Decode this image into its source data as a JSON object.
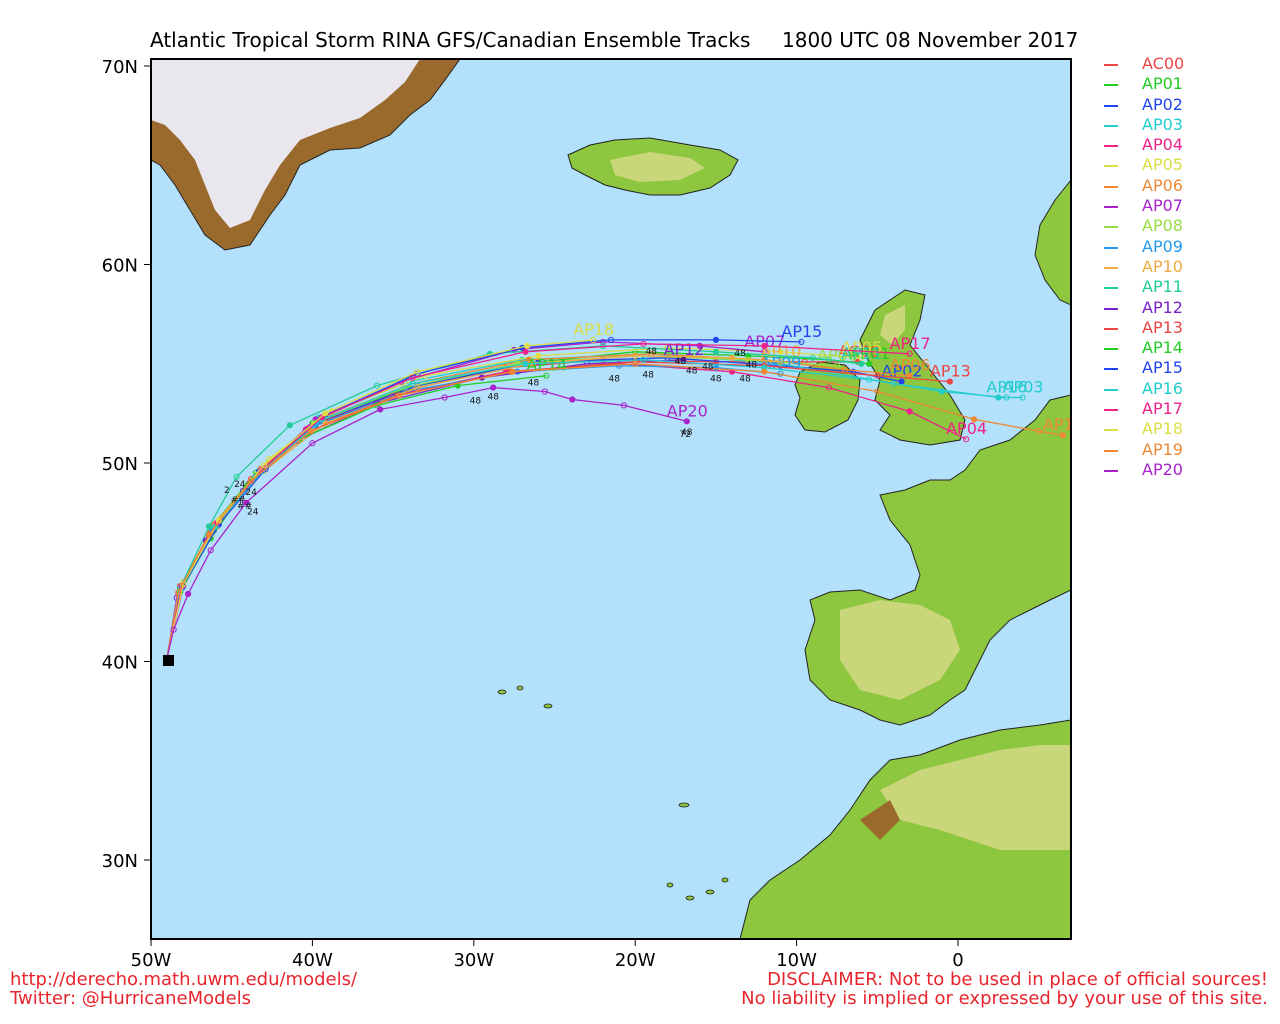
{
  "title_left": "Atlantic Tropical Storm RINA GFS/Canadian Ensemble Tracks",
  "title_right": "1800 UTC 08 November 2017",
  "colors": {
    "ocean": "#b3e1fb",
    "land_low": "#8dc63f",
    "land_mid": "#c9d67a",
    "land_high": "#9a6a2c",
    "ice": "#eae6ee"
  },
  "axes": {
    "lon_ticks": [
      "50W",
      "40W",
      "30W",
      "20W",
      "10W",
      "0"
    ],
    "lat_ticks": [
      "70N",
      "60N",
      "50N",
      "40N",
      "30N"
    ]
  },
  "legend": [
    {
      "name": "AC00",
      "color": "#ee4444"
    },
    {
      "name": "AP01",
      "color": "#22cc22"
    },
    {
      "name": "AP02",
      "color": "#2244ee"
    },
    {
      "name": "AP03",
      "color": "#22cccc"
    },
    {
      "name": "AP04",
      "color": "#ee2288"
    },
    {
      "name": "AP05",
      "color": "#dddd44"
    },
    {
      "name": "AP06",
      "color": "#ee8833"
    },
    {
      "name": "AP07",
      "color": "#aa22cc"
    },
    {
      "name": "AP08",
      "color": "#99dd44"
    },
    {
      "name": "AP09",
      "color": "#2299ee"
    },
    {
      "name": "AP10",
      "color": "#eeaa44"
    },
    {
      "name": "AP11",
      "color": "#22cc99"
    },
    {
      "name": "AP12",
      "color": "#7722cc"
    },
    {
      "name": "AP13",
      "color": "#ee4444"
    },
    {
      "name": "AP14",
      "color": "#22cc22"
    },
    {
      "name": "AP15",
      "color": "#2244ee"
    },
    {
      "name": "AP16",
      "color": "#22cccc"
    },
    {
      "name": "AP17",
      "color": "#ee2288"
    },
    {
      "name": "AP18",
      "color": "#dddd44"
    },
    {
      "name": "AP19",
      "color": "#ee8833"
    },
    {
      "name": "AP20",
      "color": "#aa22cc"
    }
  ],
  "footer": {
    "url": "http://derecho.math.uwm.edu/models/",
    "twitter": "Twitter: @HurricaneModels",
    "disclaimer1": "DISCLAIMER: Not to be used in place of official sources!",
    "disclaimer2": "No liability is implied or expressed by your use of this site."
  },
  "tracks": [
    {
      "name": "AC00",
      "color": "#ee4444",
      "label": "AC00",
      "pts": [
        [
          -49,
          40.2
        ],
        [
          -48.2,
          43.8
        ],
        [
          -46.3,
          46.5
        ],
        [
          -43.8,
          49.2
        ],
        [
          -40.2,
          51.8
        ],
        [
          -35,
          53.5
        ],
        [
          -28,
          54.8
        ],
        [
          -22,
          55.2
        ],
        [
          -15,
          55.1
        ],
        [
          -9.5,
          55.1
        ],
        [
          -6.2,
          55.1
        ]
      ]
    },
    {
      "name": "AP01",
      "color": "#22cc22",
      "label": "AP01",
      "pts": [
        [
          -49,
          40.2
        ],
        [
          -48.2,
          43.5
        ],
        [
          -46.2,
          46.8
        ],
        [
          -43.5,
          49.5
        ],
        [
          -40,
          52
        ],
        [
          -34,
          53.8
        ],
        [
          -27,
          55
        ],
        [
          -20,
          55.6
        ],
        [
          -13,
          55.4
        ],
        [
          -8,
          55.2
        ],
        [
          -5.5,
          55
        ]
      ]
    },
    {
      "name": "AP02",
      "color": "#2244ee",
      "label": "AP02",
      "pts": [
        [
          -49,
          40.2
        ],
        [
          -48.2,
          43.6
        ],
        [
          -46.1,
          46.6
        ],
        [
          -43.3,
          49.6
        ],
        [
          -39.5,
          52.1
        ],
        [
          -33.5,
          53.9
        ],
        [
          -26,
          55.1
        ],
        [
          -18,
          55.3
        ],
        [
          -11,
          54.9
        ],
        [
          -6.5,
          54.6
        ],
        [
          -3.5,
          54.1
        ]
      ]
    },
    {
      "name": "AP03",
      "color": "#22cccc",
      "label": "AP03",
      "pts": [
        [
          -49,
          40.2
        ],
        [
          -48.1,
          43.7
        ],
        [
          -46,
          46.9
        ],
        [
          -43.2,
          49.7
        ],
        [
          -39.6,
          52.3
        ],
        [
          -34,
          54.1
        ],
        [
          -27,
          55.2
        ],
        [
          -19,
          55.5
        ],
        [
          -11,
          55
        ],
        [
          -4,
          54
        ],
        [
          2.5,
          53.3
        ],
        [
          4,
          53.3
        ]
      ]
    },
    {
      "name": "AP04",
      "color": "#ee2288",
      "label": "AP04",
      "pts": [
        [
          -49,
          40.2
        ],
        [
          -48.3,
          43.4
        ],
        [
          -46.4,
          46.4
        ],
        [
          -43.9,
          49
        ],
        [
          -40.4,
          51.7
        ],
        [
          -35,
          53.4
        ],
        [
          -28,
          54.6
        ],
        [
          -21,
          55
        ],
        [
          -14,
          54.6
        ],
        [
          -8,
          53.8
        ],
        [
          -3,
          52.6
        ],
        [
          0.5,
          51.2
        ]
      ]
    },
    {
      "name": "AP05",
      "color": "#dddd44",
      "label": "AP05",
      "pts": [
        [
          -49,
          40.2
        ],
        [
          -48,
          44
        ],
        [
          -45.7,
          47.2
        ],
        [
          -42.7,
          50.2
        ],
        [
          -38.8,
          52.6
        ],
        [
          -33,
          54.4
        ],
        [
          -26,
          55.4
        ],
        [
          -18,
          55.8
        ],
        [
          -11,
          55.6
        ],
        [
          -6,
          55.3
        ]
      ]
    },
    {
      "name": "AP06",
      "color": "#ee8833",
      "label": "AP06",
      "pts": [
        [
          -49,
          40.2
        ],
        [
          -48.2,
          43.7
        ],
        [
          -46.1,
          46.9
        ],
        [
          -43.2,
          49.7
        ],
        [
          -39.5,
          52.2
        ],
        [
          -33.8,
          54
        ],
        [
          -26.6,
          55.2
        ],
        [
          -19,
          55.5
        ],
        [
          -12,
          55.2
        ],
        [
          -7,
          54.7
        ],
        [
          -3,
          54.4
        ]
      ]
    },
    {
      "name": "AP07",
      "color": "#aa22cc",
      "label": "AP07",
      "pts": [
        [
          -49,
          40.2
        ],
        [
          -48,
          43.8
        ],
        [
          -45.9,
          47
        ],
        [
          -43.2,
          49.6
        ],
        [
          -39.8,
          52.2
        ],
        [
          -34.5,
          54.1
        ],
        [
          -27.5,
          55.7
        ],
        [
          -22,
          56.1
        ],
        [
          -16,
          55.9
        ],
        [
          -12,
          55.6
        ]
      ]
    },
    {
      "name": "AP08",
      "color": "#99dd44",
      "label": "AP08",
      "pts": [
        [
          -49,
          40.2
        ],
        [
          -48.2,
          43.6
        ],
        [
          -46.2,
          46.7
        ],
        [
          -43.5,
          49.4
        ],
        [
          -39.9,
          52
        ],
        [
          -34.3,
          53.8
        ],
        [
          -27.3,
          55
        ],
        [
          -20,
          55.4
        ],
        [
          -13,
          55.2
        ],
        [
          -7.5,
          54.9
        ]
      ]
    },
    {
      "name": "AP09",
      "color": "#2299ee",
      "label": "AP09",
      "pts": [
        [
          -49,
          40.2
        ],
        [
          -48.2,
          43.6
        ],
        [
          -46.2,
          46.6
        ],
        [
          -43.5,
          49.3
        ],
        [
          -39.8,
          51.9
        ],
        [
          -34.2,
          53.6
        ],
        [
          -27.3,
          54.6
        ],
        [
          -21,
          54.9
        ],
        [
          -15,
          54.8
        ],
        [
          -11,
          54.5
        ]
      ]
    },
    {
      "name": "AP10",
      "color": "#eeaa44",
      "label": "AP10",
      "pts": [
        [
          -49,
          40.2
        ],
        [
          -48.1,
          43.8
        ],
        [
          -45.9,
          46.8
        ],
        [
          -43,
          49.6
        ],
        [
          -39.2,
          52
        ],
        [
          -33.5,
          53.8
        ],
        [
          -26.5,
          55
        ],
        [
          -20,
          55.4
        ],
        [
          -14,
          55.3
        ],
        [
          -11,
          55.1
        ]
      ]
    },
    {
      "name": "AP11",
      "color": "#22cc99",
      "label": "AP11",
      "pts": [
        [
          -49,
          40.2
        ],
        [
          -48.2,
          43.7
        ],
        [
          -46.4,
          46.8
        ],
        [
          -44.7,
          49.3
        ],
        [
          -41.4,
          51.9
        ],
        [
          -36,
          53.9
        ],
        [
          -29,
          55.5
        ],
        [
          -22,
          55.9
        ],
        [
          -15,
          55.6
        ],
        [
          -9,
          55.3
        ],
        [
          -6,
          55
        ]
      ]
    },
    {
      "name": "AP12",
      "color": "#7722cc",
      "label": "AP12",
      "pts": [
        [
          -49,
          40.2
        ],
        [
          -48.4,
          43.2
        ],
        [
          -46.6,
          46.1
        ],
        [
          -44.3,
          48.6
        ],
        [
          -41,
          51.1
        ],
        [
          -36,
          53
        ],
        [
          -29.5,
          54.3
        ],
        [
          -23,
          55
        ],
        [
          -17,
          55.2
        ]
      ]
    },
    {
      "name": "AP13",
      "color": "#ee4444",
      "label": "AP13",
      "pts": [
        [
          -49,
          40.2
        ],
        [
          -48.3,
          43.4
        ],
        [
          -46.4,
          46.3
        ],
        [
          -43.8,
          49.1
        ],
        [
          -40.2,
          51.6
        ],
        [
          -34.7,
          53.4
        ],
        [
          -27.7,
          54.6
        ],
        [
          -20,
          55.1
        ],
        [
          -12,
          54.9
        ],
        [
          -5,
          54.4
        ],
        [
          -0.5,
          54.1
        ]
      ]
    },
    {
      "name": "AP14",
      "color": "#22cc22",
      "label": "AP14",
      "pts": [
        [
          -49,
          40.2
        ],
        [
          -48.2,
          43.5
        ],
        [
          -46.3,
          46.2
        ],
        [
          -44,
          48.9
        ],
        [
          -40.8,
          51.2
        ],
        [
          -36,
          52.9
        ],
        [
          -31,
          53.9
        ],
        [
          -25.5,
          54.4
        ]
      ]
    },
    {
      "name": "AP15",
      "color": "#2244ee",
      "label": "AP15",
      "pts": [
        [
          -49,
          40.2
        ],
        [
          -48.1,
          43.7
        ],
        [
          -45.8,
          46.9
        ],
        [
          -42.9,
          49.7
        ],
        [
          -39.2,
          52.4
        ],
        [
          -33.5,
          54.5
        ],
        [
          -27,
          55.8
        ],
        [
          -21.5,
          56.2
        ],
        [
          -15,
          56.2
        ],
        [
          -9.7,
          56.1
        ]
      ]
    },
    {
      "name": "AP16",
      "color": "#22cccc",
      "label": "AP16",
      "pts": [
        [
          -49,
          40.2
        ],
        [
          -48.2,
          43.6
        ],
        [
          -46,
          46.8
        ],
        [
          -43.1,
          49.6
        ],
        [
          -39.4,
          52.2
        ],
        [
          -33.8,
          54
        ],
        [
          -26.8,
          55
        ],
        [
          -19.5,
          55.2
        ],
        [
          -12,
          54.8
        ],
        [
          -5.5,
          54.2
        ],
        [
          -1,
          53.6
        ],
        [
          3,
          53.3
        ]
      ]
    },
    {
      "name": "AP17",
      "color": "#ee2288",
      "label": "AP17",
      "pts": [
        [
          -49,
          40.2
        ],
        [
          -48.1,
          43.8
        ],
        [
          -45.9,
          47
        ],
        [
          -43.1,
          49.7
        ],
        [
          -39.4,
          52.3
        ],
        [
          -33.8,
          54.3
        ],
        [
          -26.8,
          55.6
        ],
        [
          -19.5,
          56
        ],
        [
          -12,
          55.9
        ],
        [
          -3,
          55.5
        ]
      ]
    },
    {
      "name": "AP18",
      "color": "#dddd44",
      "label": "AP18",
      "pts": [
        [
          -49,
          40.2
        ],
        [
          -48,
          43.9
        ],
        [
          -45.8,
          47.1
        ],
        [
          -43,
          49.9
        ],
        [
          -39.2,
          52.5
        ],
        [
          -33.5,
          54.6
        ],
        [
          -26.7,
          55.9
        ],
        [
          -22.6,
          56.2
        ]
      ]
    },
    {
      "name": "AP19",
      "color": "#ee8833",
      "label": "AP19",
      "pts": [
        [
          -49,
          40.2
        ],
        [
          -48.3,
          43.5
        ],
        [
          -46.4,
          46.4
        ],
        [
          -43.8,
          49.1
        ],
        [
          -40.1,
          51.6
        ],
        [
          -34.6,
          53.4
        ],
        [
          -27.6,
          54.6
        ],
        [
          -20,
          55
        ],
        [
          -12,
          54.6
        ],
        [
          -5,
          53.6
        ],
        [
          1,
          52.2
        ],
        [
          5,
          51.6
        ],
        [
          6.5,
          51.4
        ]
      ]
    },
    {
      "name": "AP20",
      "color": "#aa22cc",
      "label": "AP20",
      "pts": [
        [
          -49,
          40.2
        ],
        [
          -48.6,
          41.6
        ],
        [
          -47.7,
          43.4
        ],
        [
          -46.3,
          45.6
        ],
        [
          -44.1,
          48
        ],
        [
          -40,
          51
        ],
        [
          -35.8,
          52.7
        ],
        [
          -31.8,
          53.3
        ],
        [
          -28.8,
          53.8
        ],
        [
          -25.6,
          53.6
        ],
        [
          -23.9,
          53.2
        ],
        [
          -20.7,
          52.9
        ],
        [
          -16.8,
          52.1
        ]
      ]
    }
  ],
  "hour_labels": [
    {
      "text": "48",
      "lon": -29.9,
      "lat": 53.0
    },
    {
      "text": "48",
      "lon": -28.8,
      "lat": 53.2
    },
    {
      "text": "48",
      "lon": -26.3,
      "lat": 53.9
    },
    {
      "text": "48",
      "lon": -21.3,
      "lat": 54.1
    },
    {
      "text": "48",
      "lon": -19.2,
      "lat": 54.3
    },
    {
      "text": "48",
      "lon": -19,
      "lat": 55.5
    },
    {
      "text": "48",
      "lon": -17.2,
      "lat": 55.0
    },
    {
      "text": "48",
      "lon": -16.5,
      "lat": 54.5
    },
    {
      "text": "48",
      "lon": -15.5,
      "lat": 54.7
    },
    {
      "text": "48",
      "lon": -15.0,
      "lat": 54.1
    },
    {
      "text": "48",
      "lon": -13.5,
      "lat": 55.4
    },
    {
      "text": "48",
      "lon": -12.8,
      "lat": 54.8
    },
    {
      "text": "48",
      "lon": -13.2,
      "lat": 54.1
    },
    {
      "text": "48",
      "lon": -16.8,
      "lat": 51.4
    },
    {
      "text": "72",
      "lon": -16.9,
      "lat": 51.3
    }
  ],
  "early_labels": [
    {
      "text": "24",
      "lon": -43.8,
      "lat": 48.4
    },
    {
      "text": "24",
      "lon": -44.5,
      "lat": 48.8
    },
    {
      "text": "24",
      "lon": -43.7,
      "lat": 47.4
    },
    {
      "text": "2",
      "lon": -45.3,
      "lat": 48.5
    },
    {
      "text": "##",
      "lon": -44.6,
      "lat": 48.0
    },
    {
      "text": "##",
      "lon": -44.2,
      "lat": 47.7
    }
  ]
}
